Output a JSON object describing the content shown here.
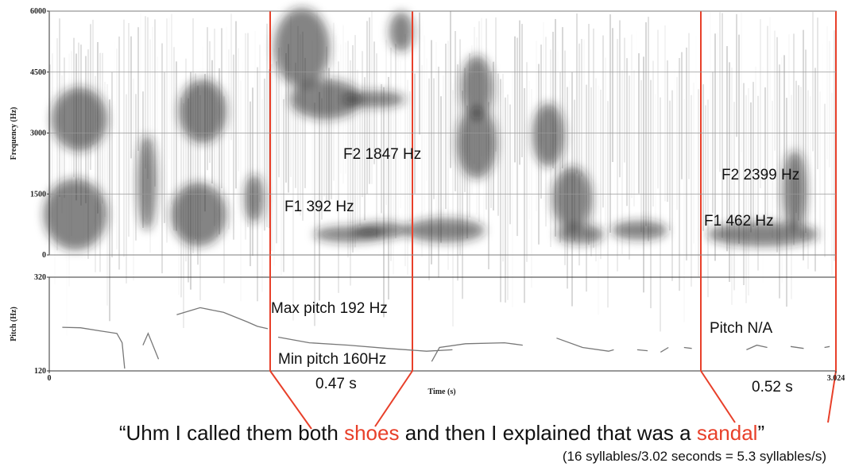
{
  "chart_data": [
    {
      "type": "spectrogram",
      "y_label": "Frequency (Hz)",
      "ylim": [
        0,
        6000
      ],
      "yticks": [
        0,
        1500,
        3000,
        4500,
        6000
      ],
      "grid": true
    },
    {
      "type": "line",
      "y_label": "Pitch (Hz)",
      "x_label": "Time (s)",
      "xlim": [
        0,
        3.024
      ],
      "xticks": [
        0,
        3.024
      ],
      "ylim": [
        120,
        320
      ],
      "yticks": [
        120,
        320
      ],
      "series": [
        {
          "color": "#777777",
          "x": [
            0.05,
            0.12,
            0.2,
            0.26,
            0.28,
            0.29,
            null,
            0.36,
            0.38,
            0.42,
            null,
            0.49,
            0.58,
            0.67,
            0.76,
            0.8,
            0.84,
            null,
            0.88,
            1.0,
            1.15,
            1.3,
            1.45,
            1.55,
            null,
            1.47,
            1.5,
            1.6,
            1.75,
            1.82,
            null,
            1.95,
            2.05,
            2.15,
            2.17,
            null,
            2.26,
            2.3,
            null,
            2.35,
            2.38,
            null,
            2.44,
            2.47,
            null,
            2.68,
            2.72,
            2.76,
            null,
            2.85,
            2.9,
            null,
            2.98,
            3.0
          ],
          "values": [
            213,
            212,
            205,
            200,
            180,
            125,
            null,
            175,
            200,
            145,
            null,
            240,
            255,
            245,
            225,
            215,
            210,
            null,
            192,
            180,
            175,
            168,
            162,
            165,
            null,
            140,
            170,
            178,
            180,
            175,
            null,
            190,
            170,
            162,
            165,
            null,
            165,
            163,
            null,
            160,
            170,
            null,
            170,
            168,
            null,
            165,
            175,
            170,
            null,
            172,
            168,
            null,
            170,
            172
          ]
        }
      ]
    }
  ],
  "annotations": [
    "F2 1847 Hz",
    "F1 392 Hz",
    "F2 2399 Hz",
    "F1 462 Hz",
    "Max pitch 192 Hz",
    "Min pitch 160Hz",
    "Pitch N/A",
    "0.47 s",
    "0.52 s"
  ],
  "caption": {
    "parts": [
      "“Uhm I called them both ",
      "shoes",
      " and then I explained that was a ",
      "sandal",
      "”"
    ],
    "highlight": [
      1,
      3
    ],
    "highlight_color": "#e8402a"
  },
  "subcaption": "(16 syllables/3.02 seconds = 5.3 syllables/s)"
}
